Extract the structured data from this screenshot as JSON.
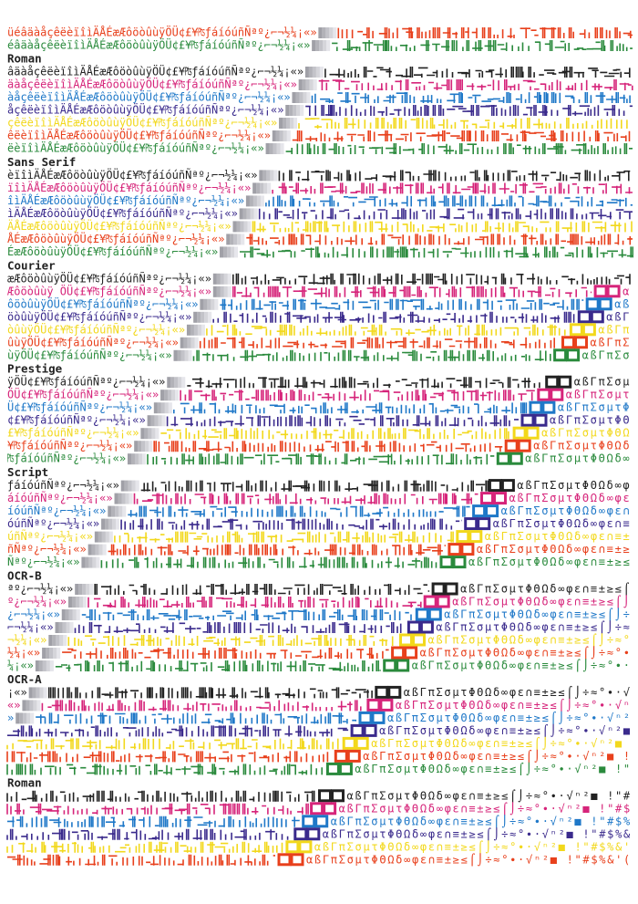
{
  "sections": [
    {
      "rows": [
        {
          "text": "üéâäàåçêëèïîìÄÅÉæÆôöòûùÿÖÜ¢£¥₧ƒáíóúñÑªº¿⌐¬½¼¡«»"
        },
        {
          "text": "éâäàåçêëèïîìÄÅÉæÆôöòûùÿÖÜ¢£¥₧ƒáíóúñÑªº¿⌐¬½¼¡«»"
        }
      ]
    },
    {
      "label": "Roman",
      "rows": [
        {
          "text": "âäàåçêëèïîìÄÅÉæÆôöòûùÿÖÜ¢£¥₧ƒáíóúñÑªº¿⌐¬½¼¡«»"
        },
        {
          "text": "äàåçêëèïîìÄÅÉæÆôöòûùÿÖÜ¢£¥₧ƒáíóúñÑªº¿⌐¬½¼¡«»"
        },
        {
          "text": "àåçêëèïîìÄÅÉæÆôöòûùÿÖÜ¢£¥₧ƒáíóúñÑªº¿⌐¬½¼¡«»"
        },
        {
          "text": "åçêëèïîìÄÅÉæÆôöòûùÿÖÜ¢£¥₧ƒáíóúñÑªº¿⌐¬½¼¡«»"
        },
        {
          "text": "çêëèïîìÄÅÉæÆôöòûùÿÖÜ¢£¥₧ƒáíóúñÑªº¿⌐¬½¼¡«»"
        },
        {
          "text": "êëèïîìÄÅÉæÆôöòûùÿÖÜ¢£¥₧ƒáíóúñÑªº¿⌐¬½¼¡«»"
        },
        {
          "text": "ëèïîìÄÅÉæÆôöòûùÿÖÜ¢£¥₧ƒáíóúñÑªº¿⌐¬½¼¡«»"
        }
      ]
    },
    {
      "label": "Sans Serif",
      "rows": [
        {
          "text": "èïîìÄÅÉæÆôöòûùÿÖÜ¢£¥₧ƒáíóúñÑªº¿⌐¬½¼¡«»"
        },
        {
          "text": "ïîìÄÅÉæÆôöòûùÿÖÜ¢£¥₧ƒáíóúñÑªº¿⌐¬½¼¡«»"
        },
        {
          "text": "îìÄÅÉæÆôöòûùÿÖÜ¢£¥₧ƒáíóúñÑªº¿⌐¬½¼¡«»"
        },
        {
          "text": "ìÄÅÉæÆôöòûùÿÖÜ¢£¥₧ƒáíóúñÑªº¿⌐¬½¼¡«»"
        },
        {
          "text": "ÄÅÉæÆôöòûùÿÖÜ¢£¥₧ƒáíóúñÑªº¿⌐¬½¼¡«»"
        },
        {
          "text": "ÅÉæÆôöòûùÿÖÜ¢£¥₧ƒáíóúñÑªº¿⌐¬½¼¡«»"
        },
        {
          "text": "ÉæÆôöòûùÿÖÜ¢£¥₧ƒáíóúñÑªº¿⌐¬½¼¡«»"
        }
      ]
    },
    {
      "label": "Courier",
      "rows": [
        {
          "text": "æÆôöòûùÿÖÜ¢£¥₧ƒáíóúñÑªº¿⌐¬½¼¡«»"
        },
        {
          "text": "Æôöòûùÿ ÖÜ¢£¥₧ƒáíóúñÑªº¿⌐¬½¼¡«»",
          "tail": "α"
        },
        {
          "text": "ôöòûùÿÖÜ¢£¥₧ƒáíóúñÑªº¿⌐¬½¼¡«»",
          "tail": "αß"
        },
        {
          "text": "öòûùÿÖÜ¢£¥₧ƒáíóúñÑªº¿⌐¬½¼¡«»",
          "tail": "αßΓ"
        },
        {
          "text": "òûùÿÖÜ¢£¥₧ƒáíóúñÑªº¿⌐¬½¼¡«»",
          "tail": "αßΓπ"
        },
        {
          "text": "ûùÿÖÜ¢£¥₧ƒáíóúñÑªº¿⌐¬½¼¡«»",
          "tail": "αßΓπΣ"
        },
        {
          "text": "ùÿÖÜ¢£¥₧ƒáíóúñÑªº¿⌐¬½¼¡«»",
          "tail": "αßΓπΣσ"
        }
      ]
    },
    {
      "label": "Prestige",
      "rows": [
        {
          "text": "ÿÖÜ¢£¥₧ƒáíóúñÑªº¿⌐¬½¼¡«»",
          "tail": "αßΓπΣσµ"
        },
        {
          "text": "ÖÜ¢£¥₧ƒáíóúñÑªº¿⌐¬½¼¡«»",
          "tail": "αßΓπΣσµτ"
        },
        {
          "text": "Ü¢£¥₧ƒáíóúñÑªº¿⌐¬½¼¡«»",
          "tail": "αßΓπΣσµτΦ"
        },
        {
          "text": "¢£¥₧ƒáíóúñÑªº¿⌐¬½¼¡«»",
          "tail": "αßΓπΣσµτΦΘ"
        },
        {
          "text": "£¥₧ƒáíóúñÑªº¿⌐¬½¼¡«»",
          "tail": "αßΓπΣσµτΦΘΩ"
        },
        {
          "text": "¥₧ƒáíóúñÑªº¿⌐¬½¼¡«»",
          "tail": "αßΓπΣσµτΦΘΩδ"
        },
        {
          "text": "₧ƒáíóúñÑªº¿⌐¬½¼¡«»",
          "tail": "αßΓπΣσµτΦΘΩδ∞"
        }
      ]
    },
    {
      "label": "Script",
      "rows": [
        {
          "text": "ƒáíóúñÑªº¿⌐¬½¼¡«»",
          "tail": "αßΓπΣσµτΦΘΩδ∞φ"
        },
        {
          "text": "áíóúñÑªº¿⌐¬½¼¡«»",
          "tail": "αßΓπΣσµτΦΘΩδ∞φε"
        },
        {
          "text": "íóúñÑªº¿⌐¬½¼¡«»",
          "tail": "αßΓπΣσµτΦΘΩδ∞φε∩"
        },
        {
          "text": "óúñÑªº¿⌐¬½¼¡«»",
          "tail": "αßΓπΣσµτΦΘΩδ∞φε∩≡"
        },
        {
          "text": "úñÑªº¿⌐¬½¼¡«»",
          "tail": "αßΓπΣσµτΦΘΩδ∞φε∩≡±"
        },
        {
          "text": "ñÑªº¿⌐¬½¼¡«»",
          "tail": "αßΓπΣσµτΦΘΩδ∞φε∩≡±≥"
        },
        {
          "text": "Ñªº¿⌐¬½¼¡«»",
          "tail": "αßΓπΣσµτΦΘΩδ∞φε∩≡±≥≤"
        }
      ]
    },
    {
      "label": "OCR-B",
      "rows": [
        {
          "text": "ªº¿⌐¬½¼¡«»",
          "tail": "αßΓπΣσµτΦΘΩδ∞φε∩≡±≥≤⌠"
        },
        {
          "text": "º¿⌐¬½¼¡«»",
          "tail": "αßΓπΣσµτΦΘΩδ∞φε∩≡±≥≤⌠⌡"
        },
        {
          "text": "¿⌐¬½¼¡«»",
          "tail": "αßΓπΣσµτΦΘΩδ∞φε∩≡±≥≤⌠⌡÷"
        },
        {
          "text": "⌐¬½¼¡«»",
          "tail": "αßΓπΣσµτΦΘΩδ∞φε∩≡±≥≤⌠⌡÷≈"
        },
        {
          "text": "¬½¼¡«»",
          "tail": "αßΓπΣσµτΦΘΩδ∞φε∩≡±≥≤⌠⌡÷≈°"
        },
        {
          "text": "½¼¡«»",
          "tail": "αßΓπΣσµτΦΘΩδ∞φε∩≡±≥≤⌠⌡÷≈°∙"
        },
        {
          "text": "¼¡«»",
          "tail": "αßΓπΣσµτΦΘΩδ∞φε∩≡±≥≤⌠⌡÷≈°∙·"
        }
      ]
    },
    {
      "label": "OCR-A",
      "rows": [
        {
          "text": "¡«»",
          "tail": "αßΓπΣσµτΦΘΩδ∞φε∩≡±≥≤⌠⌡÷≈°∙·√"
        },
        {
          "text": "«»",
          "tail": "αßΓπΣσµτΦΘΩδ∞φε∩≡±≥≤⌠⌡÷≈°∙·√ⁿ"
        },
        {
          "text": "»",
          "tail": "αßΓπΣσµτΦΘΩδ∞φε∩≡±≥≤⌠⌡÷≈°∙·√ⁿ²"
        },
        {
          "tail": "αßΓπΣσµτΦΘΩδ∞φε∩≡±≥≤⌠⌡÷≈°∙·√ⁿ²■"
        },
        {
          "tail": "αßΓπΣσµτΦΘΩδ∞φε∩≡±≥≤⌠⌡÷≈°∙·√ⁿ²■ "
        },
        {
          "tail": "αßΓπΣσµτΦΘΩδ∞φε∩≡±≥≤⌠⌡÷≈°∙·√ⁿ²■ !"
        },
        {
          "tail": "αßΓπΣσµτΦΘΩδ∞φε∩≡±≥≤⌠⌡÷≈°∙·√ⁿ²■ !\""
        }
      ]
    },
    {
      "label": "Roman",
      "rows": [
        {
          "tail": "αßΓπΣσµτΦΘΩδ∞φε∩≡±≥≤⌠⌡÷≈°∙·√ⁿ²■ !\"#"
        },
        {
          "tail": "αßΓπΣσµτΦΘΩδ∞φε∩≡±≥≤⌠⌡÷≈°∙·√ⁿ²■ !\"#$"
        },
        {
          "tail": "αßΓπΣσµτΦΘΩδ∞φε∩≡±≥≤⌠⌡÷≈°∙·√ⁿ²■ !\"#$%"
        },
        {
          "tail": "αßΓπΣσµτΦΘΩδ∞φε∩≡±≥≤⌠⌡÷≈°∙·√ⁿ²■ !\"#$%&"
        },
        {
          "tail": "αßΓπΣσµτΦΘΩδ∞φε∩≡±≥≤⌠⌡÷≈°∙·√ⁿ²■ !\"#$%&'"
        },
        {
          "tail": "αßΓπΣσµτΦΘΩδ∞φε∩≡±≥≤⌠⌡÷≈°∙·√ⁿ²■ !\"#$%&'("
        }
      ]
    }
  ]
}
